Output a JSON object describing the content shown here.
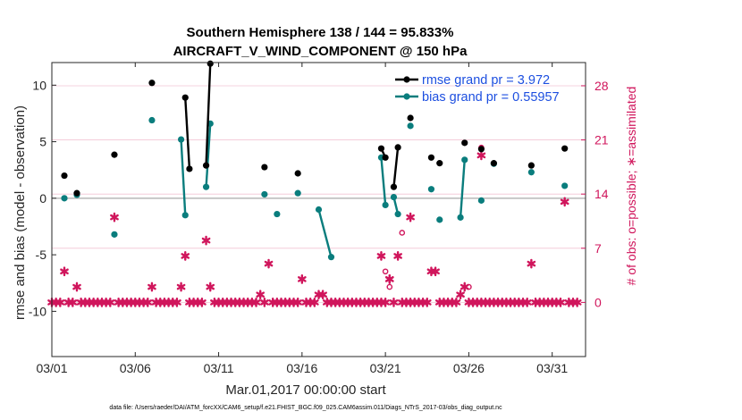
{
  "chart_data": {
    "type": "line",
    "title_line1": "Southern Hemisphere 138 / 144 = 95.833%",
    "title_line2": "AIRCRAFT_V_WIND_COMPONENT @ 150 hPa",
    "xlabel": "Mar.01,2017 00:00:00 start",
    "ylabel": "rmse and bias (model - observation)",
    "ylabel_right": "# of obs: o=possible; ∗=assimilated",
    "footnote": "data file: /Users/raeder/DAI/ATM_forcXX/CAM6_setup/f.e21.FHIST_BGC.f09_025.CAM6assim.011/Diags_NTrS_2017-03/obs_diag_output.nc",
    "xlim": [
      0,
      32
    ],
    "ylim": [
      -14,
      12
    ],
    "ylim_right": [
      -7,
      31
    ],
    "x_ticks": [
      0,
      5,
      10,
      15,
      20,
      25,
      30
    ],
    "x_tick_labels": [
      "03/01",
      "03/06",
      "03/11",
      "03/16",
      "03/21",
      "03/26",
      "03/31"
    ],
    "y_ticks": [
      -10,
      -5,
      0,
      5,
      10
    ],
    "y_tick_labels": [
      "-10",
      "-5",
      "0",
      "5",
      "10"
    ],
    "y_right_ticks": [
      0,
      7,
      14,
      21,
      28
    ],
    "y_right_tick_labels": [
      "0",
      "7",
      "14",
      "21",
      "28"
    ],
    "colors": {
      "rmse": "#000000",
      "bias": "#0a7d7d",
      "obs": "#d0165c",
      "zero_line": "#aaaaaa",
      "legend_text": "#1d4fe0",
      "grid_right": "#f2c4d4"
    },
    "legend": {
      "placement": "top-right",
      "entries": [
        "rmse grand pr = 3.972",
        "bias grand pr = 0.55957"
      ]
    },
    "series": [
      {
        "name": "rmse",
        "points": [
          [
            0.75,
            2.0
          ],
          [
            1.5,
            0.45
          ],
          [
            3.75,
            3.85
          ],
          [
            6.0,
            10.2
          ],
          [
            8.0,
            8.9
          ],
          [
            8.25,
            2.6
          ],
          [
            9.25,
            2.9
          ],
          [
            9.5,
            11.9
          ],
          [
            12.75,
            2.75
          ],
          [
            14.75,
            2.2
          ],
          [
            19.75,
            4.4
          ],
          [
            20.0,
            3.6
          ],
          [
            20.5,
            1.0
          ],
          [
            20.75,
            4.5
          ],
          [
            21.5,
            7.1
          ],
          [
            22.75,
            3.6
          ],
          [
            23.25,
            3.1
          ],
          [
            24.75,
            4.9
          ],
          [
            25.75,
            4.35
          ],
          [
            26.5,
            3.1
          ],
          [
            28.75,
            2.9
          ],
          [
            30.75,
            4.4
          ]
        ],
        "segments": [
          [
            0
          ],
          [
            1
          ],
          [
            2
          ],
          [
            3
          ],
          [
            4,
            5
          ],
          [
            6,
            7
          ],
          [
            8
          ],
          [
            9
          ],
          [
            10,
            11
          ],
          [
            12,
            13
          ],
          [
            14
          ],
          [
            15
          ],
          [
            16
          ],
          [
            17
          ],
          [
            18
          ],
          [
            19
          ],
          [
            20
          ],
          [
            21
          ]
        ]
      },
      {
        "name": "bias",
        "points": [
          [
            0.75,
            0.0
          ],
          [
            1.5,
            0.3
          ],
          [
            3.75,
            -3.2
          ],
          [
            6.0,
            6.9
          ],
          [
            7.75,
            5.2
          ],
          [
            8.0,
            -1.5
          ],
          [
            9.25,
            1.0
          ],
          [
            9.5,
            6.6
          ],
          [
            12.75,
            0.35
          ],
          [
            13.5,
            -1.4
          ],
          [
            14.75,
            0.45
          ],
          [
            16.0,
            -1.0
          ],
          [
            16.75,
            -5.2
          ],
          [
            19.75,
            3.6
          ],
          [
            20.0,
            -0.6
          ],
          [
            20.5,
            0.1
          ],
          [
            20.75,
            -1.4
          ],
          [
            21.5,
            6.4
          ],
          [
            22.75,
            0.8
          ],
          [
            23.25,
            -1.9
          ],
          [
            24.5,
            -1.7
          ],
          [
            24.75,
            3.4
          ],
          [
            25.75,
            -0.2
          ],
          [
            26.5,
            3.05
          ],
          [
            28.75,
            2.3
          ],
          [
            30.75,
            1.1
          ]
        ],
        "segments": [
          [
            0
          ],
          [
            1
          ],
          [
            2
          ],
          [
            3
          ],
          [
            4,
            5
          ],
          [
            6,
            7
          ],
          [
            8
          ],
          [
            9
          ],
          [
            10
          ],
          [
            11,
            12
          ],
          [
            13,
            14
          ],
          [
            15,
            16
          ],
          [
            17
          ],
          [
            18
          ],
          [
            19
          ],
          [
            20,
            21
          ],
          [
            22
          ],
          [
            23
          ],
          [
            24
          ],
          [
            25
          ]
        ]
      }
    ],
    "obs_assimilated": [
      [
        0,
        0
      ],
      [
        0.25,
        0
      ],
      [
        0.5,
        0
      ],
      [
        0.75,
        4
      ],
      [
        1.0,
        0
      ],
      [
        1.25,
        0
      ],
      [
        1.5,
        2
      ],
      [
        1.75,
        0
      ],
      [
        2.0,
        0
      ],
      [
        2.25,
        0
      ],
      [
        2.5,
        0
      ],
      [
        2.75,
        0
      ],
      [
        3.0,
        0
      ],
      [
        3.25,
        0
      ],
      [
        3.5,
        0
      ],
      [
        3.75,
        11
      ],
      [
        4.0,
        0
      ],
      [
        4.25,
        0
      ],
      [
        4.5,
        0
      ],
      [
        4.75,
        0
      ],
      [
        5.0,
        0
      ],
      [
        5.25,
        0
      ],
      [
        5.5,
        0
      ],
      [
        5.75,
        0
      ],
      [
        6.0,
        2
      ],
      [
        6.25,
        0
      ],
      [
        6.5,
        0
      ],
      [
        6.75,
        0
      ],
      [
        7.0,
        0
      ],
      [
        7.25,
        0
      ],
      [
        7.5,
        0
      ],
      [
        7.75,
        2
      ],
      [
        8.0,
        6
      ],
      [
        8.25,
        0
      ],
      [
        8.5,
        0
      ],
      [
        8.75,
        0
      ],
      [
        9.0,
        0
      ],
      [
        9.25,
        8
      ],
      [
        9.5,
        2
      ],
      [
        9.75,
        0
      ],
      [
        10.0,
        0
      ],
      [
        10.25,
        0
      ],
      [
        10.5,
        0
      ],
      [
        10.75,
        0
      ],
      [
        11.0,
        0
      ],
      [
        11.25,
        0
      ],
      [
        11.5,
        0
      ],
      [
        11.75,
        0
      ],
      [
        12.0,
        0
      ],
      [
        12.25,
        0
      ],
      [
        12.5,
        1
      ],
      [
        12.75,
        0
      ],
      [
        13.0,
        5
      ],
      [
        13.25,
        0
      ],
      [
        13.5,
        0
      ],
      [
        13.75,
        0
      ],
      [
        14.0,
        0
      ],
      [
        14.25,
        0
      ],
      [
        14.5,
        0
      ],
      [
        14.75,
        0
      ],
      [
        15.0,
        3
      ],
      [
        15.25,
        0
      ],
      [
        15.5,
        0
      ],
      [
        15.75,
        0
      ],
      [
        16.0,
        1
      ],
      [
        16.25,
        1
      ],
      [
        16.5,
        0
      ],
      [
        16.75,
        0
      ],
      [
        17.0,
        0
      ],
      [
        17.25,
        0
      ],
      [
        17.5,
        0
      ],
      [
        17.75,
        0
      ],
      [
        18.0,
        0
      ],
      [
        18.25,
        0
      ],
      [
        18.5,
        0
      ],
      [
        18.75,
        0
      ],
      [
        19.0,
        0
      ],
      [
        19.25,
        0
      ],
      [
        19.5,
        0
      ],
      [
        19.75,
        0
      ],
      [
        20.0,
        0
      ],
      [
        20.25,
        3
      ],
      [
        20.5,
        0
      ],
      [
        20.75,
        6
      ],
      [
        21.0,
        0
      ],
      [
        21.25,
        0
      ],
      [
        21.5,
        0
      ],
      [
        21.75,
        0
      ],
      [
        22.0,
        0
      ],
      [
        22.25,
        0
      ],
      [
        22.5,
        0
      ],
      [
        22.75,
        4
      ],
      [
        23.0,
        4
      ],
      [
        23.25,
        0
      ],
      [
        23.5,
        0
      ],
      [
        23.75,
        0
      ],
      [
        24.0,
        0
      ],
      [
        24.25,
        0
      ],
      [
        24.5,
        1
      ],
      [
        24.75,
        2
      ],
      [
        25.0,
        0
      ],
      [
        25.25,
        0
      ],
      [
        25.5,
        0
      ],
      [
        25.75,
        0
      ],
      [
        26.0,
        0
      ],
      [
        26.25,
        0
      ],
      [
        26.5,
        0
      ],
      [
        26.75,
        0
      ],
      [
        27.0,
        0
      ],
      [
        27.25,
        0
      ],
      [
        27.5,
        0
      ],
      [
        27.75,
        0
      ],
      [
        28.0,
        0
      ],
      [
        28.25,
        0
      ],
      [
        28.5,
        0
      ],
      [
        28.75,
        5
      ],
      [
        29.0,
        0
      ],
      [
        29.25,
        0
      ],
      [
        29.5,
        0
      ],
      [
        29.75,
        0
      ],
      [
        30.0,
        0
      ],
      [
        30.25,
        0
      ],
      [
        30.5,
        0
      ],
      [
        30.75,
        13
      ],
      [
        31.0,
        0
      ],
      [
        31.25,
        0
      ],
      [
        31.5,
        0
      ],
      [
        19.75,
        6
      ],
      [
        20.25,
        3
      ],
      [
        25.75,
        19
      ],
      [
        21.5,
        11
      ]
    ],
    "obs_possible_only": [
      [
        20.0,
        4
      ],
      [
        20.25,
        2
      ],
      [
        21.0,
        9
      ],
      [
        25.0,
        2
      ],
      [
        25.75,
        20
      ]
    ]
  }
}
